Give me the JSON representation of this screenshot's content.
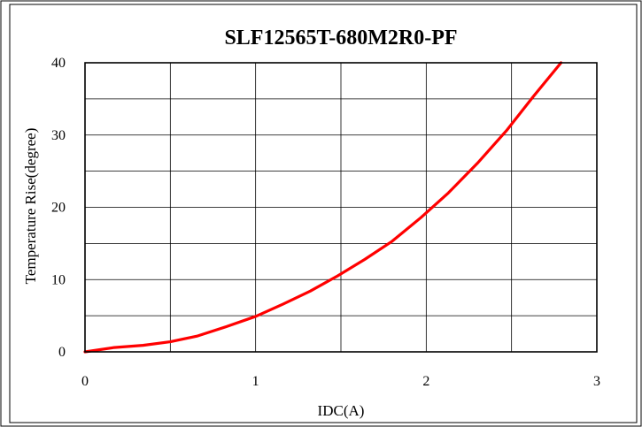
{
  "chart_data": {
    "type": "line",
    "title": "SLF12565T-680M2R0-PF",
    "xlabel": "IDC(A)",
    "ylabel": "Temperature Rise(degree)",
    "xlim": [
      0,
      3
    ],
    "ylim": [
      0,
      40
    ],
    "x_ticks": [
      0,
      1,
      2,
      3
    ],
    "y_ticks": [
      0,
      10,
      20,
      30,
      40
    ],
    "x_tick_labels": [
      "0",
      "1",
      "2",
      "3"
    ],
    "y_tick_labels": [
      "0",
      "10",
      "20",
      "30",
      "40"
    ],
    "x_minor_step": 0.5,
    "y_minor_step": 5,
    "grid": true,
    "legend": "none",
    "series": [
      {
        "color": "#ff0000",
        "x": [
          0,
          0.17,
          0.34,
          0.5,
          0.66,
          0.83,
          1.0,
          1.16,
          1.32,
          1.48,
          1.64,
          1.8,
          1.97,
          2.13,
          2.3,
          2.47,
          2.63,
          2.79
        ],
        "y": [
          0,
          0.6,
          0.9,
          1.4,
          2.2,
          3.5,
          4.9,
          6.6,
          8.4,
          10.5,
          12.8,
          15.3,
          18.6,
          22.0,
          26.1,
          30.6,
          35.4,
          40
        ]
      }
    ]
  }
}
